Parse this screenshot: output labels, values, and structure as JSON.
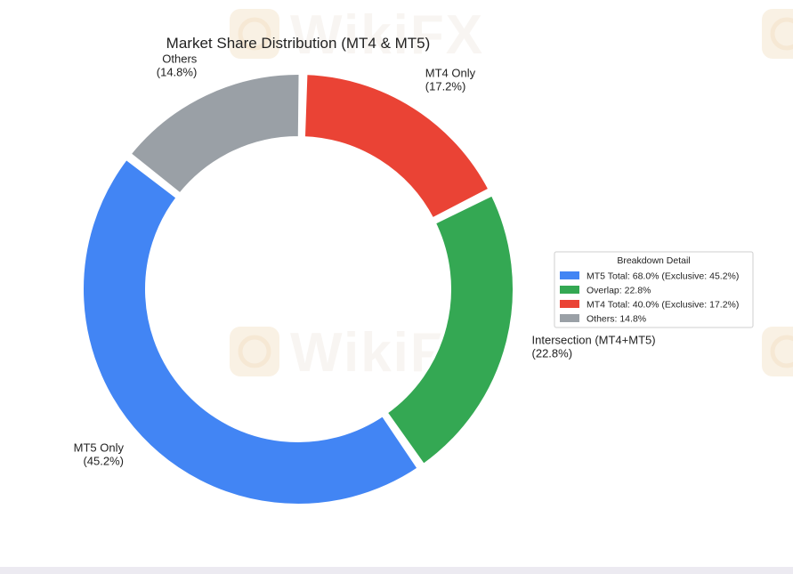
{
  "watermark": {
    "text": "WikiFX"
  },
  "chart_data": {
    "type": "pie",
    "variant": "donut",
    "title": "Market Share Distribution (MT4 & MT5)",
    "slices": [
      {
        "label": "MT4 Only",
        "value": 17.2,
        "value_label": "(17.2%)",
        "color": "#ea4335"
      },
      {
        "label": "Intersection (MT4+MT5)",
        "value": 22.8,
        "value_label": "(22.8%)",
        "color": "#34a853"
      },
      {
        "label": "MT5 Only",
        "value": 45.2,
        "value_label": "(45.2%)",
        "color": "#4285f4"
      },
      {
        "label": "Others",
        "value": 14.8,
        "value_label": "(14.8%)",
        "color": "#9aa0a6"
      }
    ],
    "legend": {
      "title": "Breakdown Detail",
      "placement": "right",
      "entries": [
        {
          "label": "MT5 Total: 68.0% (Exclusive: 45.2%)",
          "color": "#4285f4"
        },
        {
          "label": "Overlap: 22.8%",
          "color": "#34a853"
        },
        {
          "label": "MT4 Total: 40.0% (Exclusive: 17.2%)",
          "color": "#ea4335"
        },
        {
          "label": "Others: 14.8%",
          "color": "#9aa0a6"
        }
      ]
    }
  }
}
